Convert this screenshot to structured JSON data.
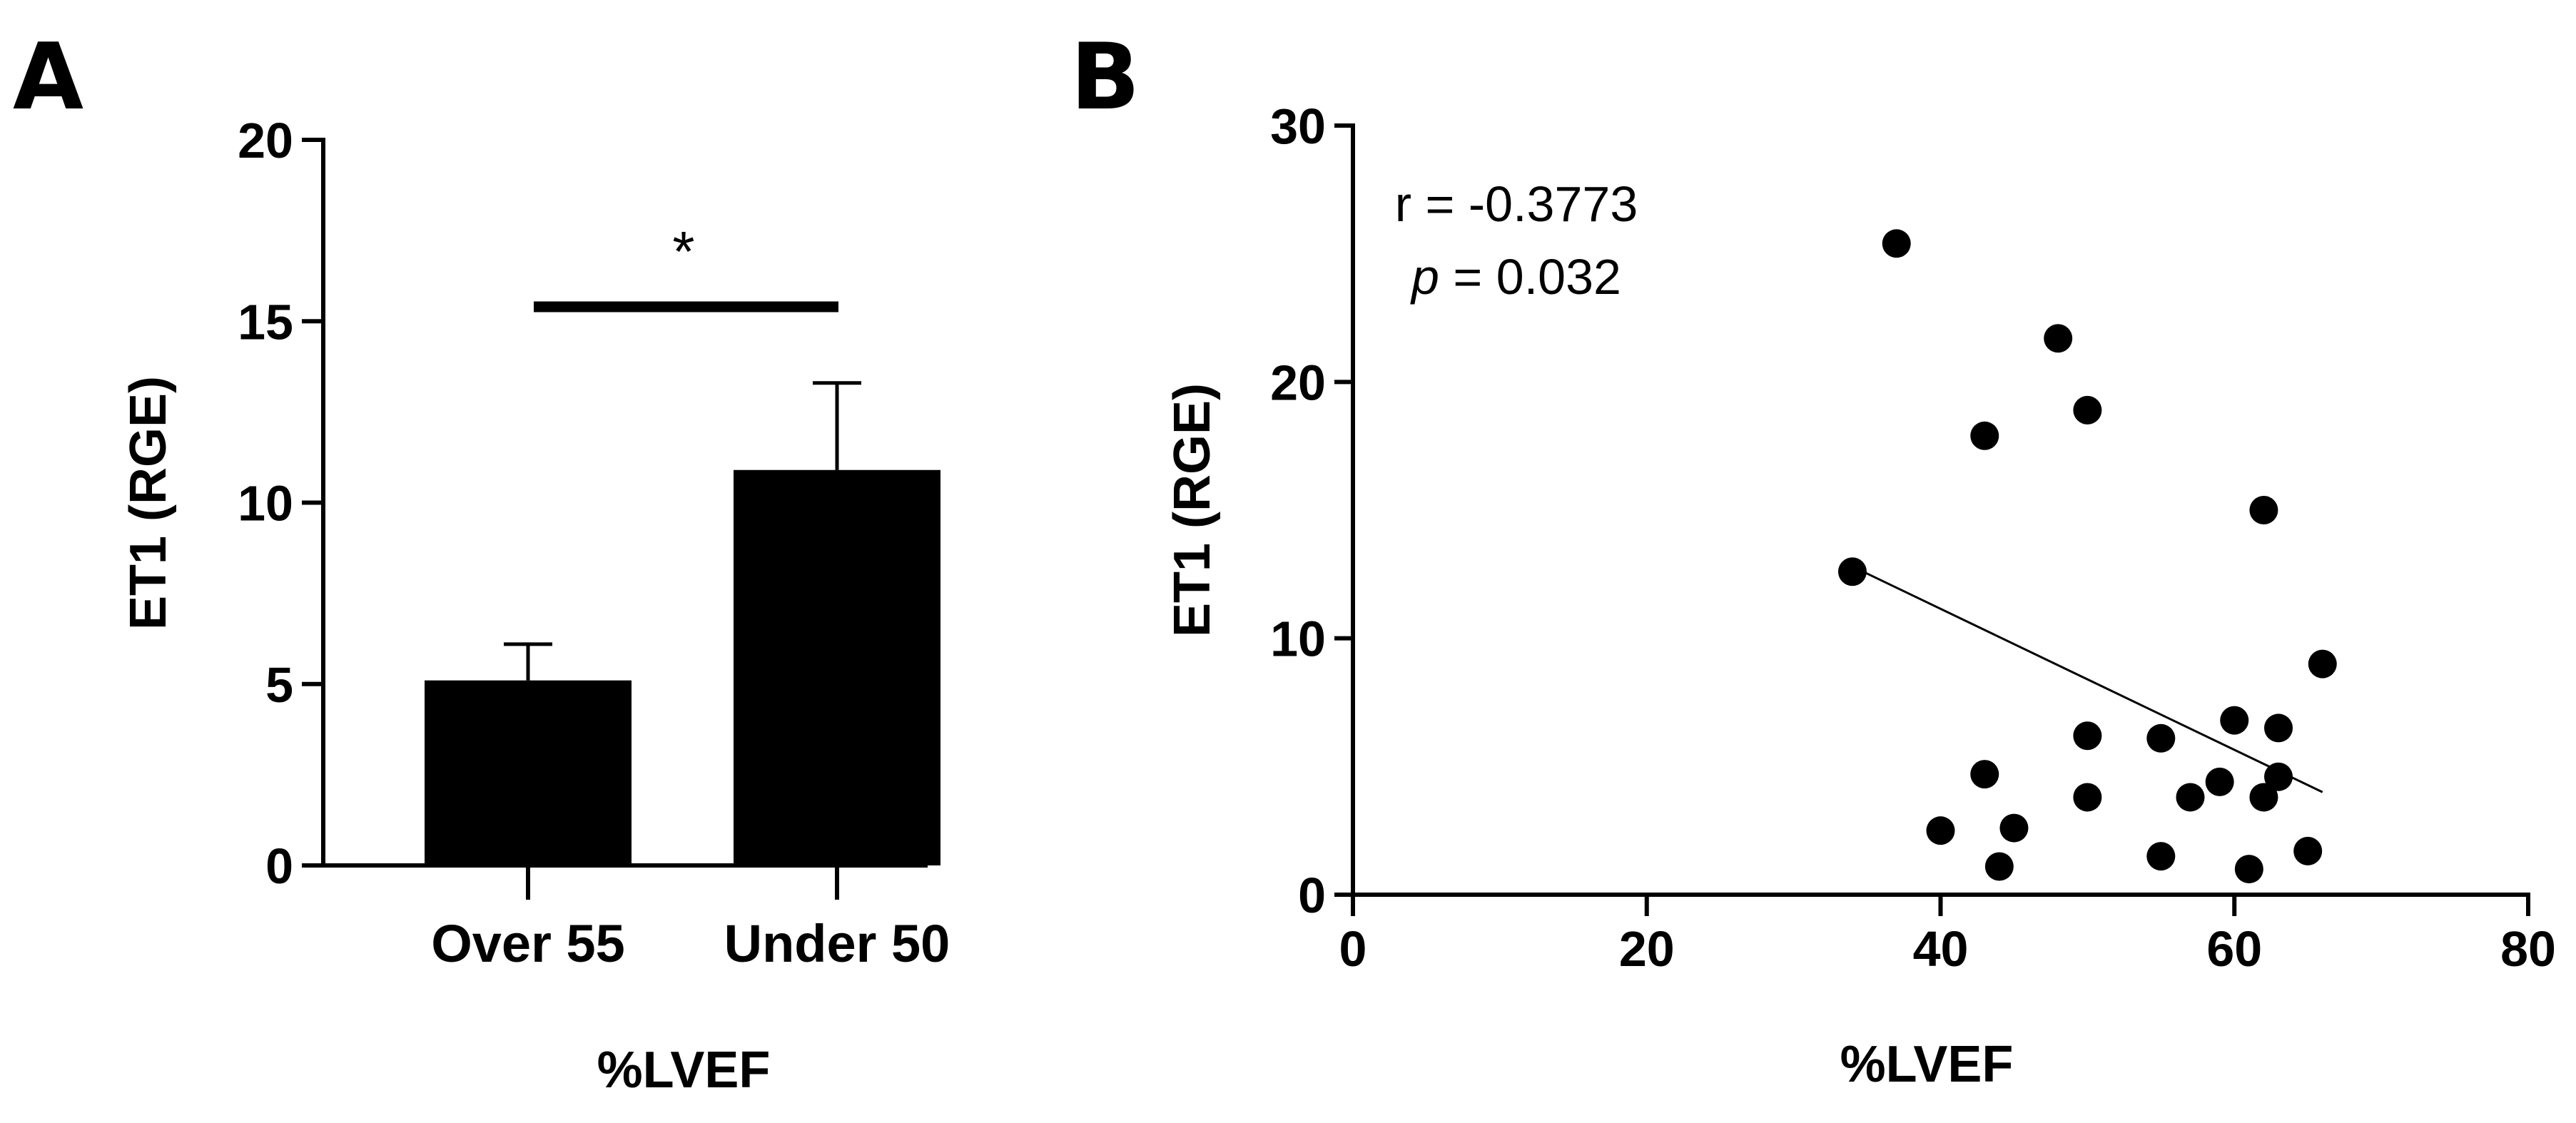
{
  "colors": {
    "ink": "#000000",
    "background": "#ffffff"
  },
  "panels": {
    "a": "A",
    "b": "B"
  },
  "chart_data": [
    {
      "panel": "A",
      "type": "bar",
      "categories": [
        "Over 55",
        "Under 50"
      ],
      "values": [
        5.1,
        10.9
      ],
      "error_upper": [
        6.1,
        13.3
      ],
      "ylabel": "ET1 (RGE)",
      "xlabel": "%LVEF",
      "ylim": [
        0,
        20
      ],
      "yticks": [
        0,
        5,
        10,
        15,
        20
      ],
      "yticks_text": [
        "0",
        "5",
        "10",
        "15",
        "20"
      ],
      "significance": {
        "between": [
          "Over 55",
          "Under 50"
        ],
        "label": "*"
      },
      "grid": false,
      "legend": "none"
    },
    {
      "panel": "B",
      "type": "scatter",
      "x": [
        37,
        48,
        50,
        43,
        62,
        34,
        66,
        60,
        63,
        50,
        55,
        59,
        57,
        43,
        63,
        62,
        50,
        40,
        45,
        44,
        55,
        61,
        65
      ],
      "y": [
        25.4,
        21.7,
        18.9,
        17.9,
        15.0,
        12.6,
        9.0,
        6.8,
        6.5,
        6.2,
        6.1,
        4.4,
        3.8,
        4.7,
        4.6,
        3.8,
        3.8,
        2.5,
        2.6,
        1.1,
        1.5,
        1.0,
        1.7
      ],
      "fit_line": {
        "x": [
          34,
          66
        ],
        "y": [
          12.8,
          4.0
        ]
      },
      "annotation": {
        "r_text": "r = -0.3773",
        "p_symbol": "p",
        "p_rest": " = 0.032"
      },
      "ylabel": "ET1 (RGE)",
      "xlabel": "%LVEF",
      "xlim": [
        0,
        80
      ],
      "ylim": [
        0,
        30
      ],
      "xticks": [
        0,
        20,
        40,
        60,
        80
      ],
      "xticks_text": [
        "0",
        "20",
        "40",
        "60",
        "80"
      ],
      "yticks": [
        0,
        10,
        20,
        30
      ],
      "yticks_text": [
        "0",
        "10",
        "20",
        "30"
      ],
      "grid": false,
      "legend": "none"
    }
  ]
}
